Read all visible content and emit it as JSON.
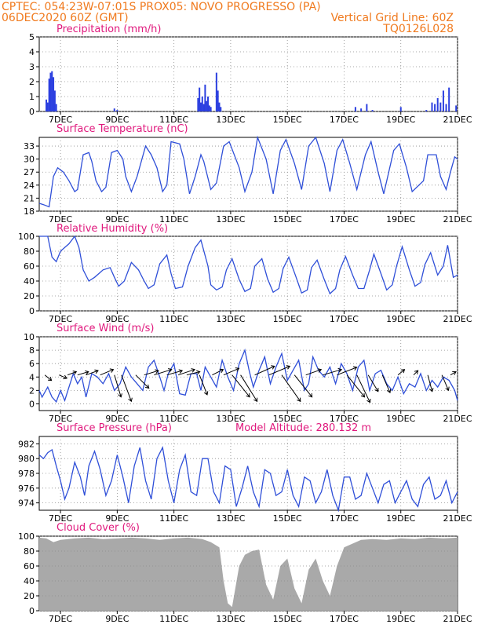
{
  "header": {
    "line1_left": "CPTEC:   054:23W-07:01S   PROX05: NOVO PROGRESSO (PA)",
    "line2_left": "06DEC2020 60Z (GMT)",
    "line2_right": "Vertical Grid Line: 60Z",
    "line3_right": "TQ0126L028"
  },
  "x_ticks": [
    "7DEC",
    "9DEC",
    "11DEC",
    "13DEC",
    "15DEC",
    "17DEC",
    "19DEC",
    "21DEC"
  ],
  "x_tick_days": [
    7,
    9,
    11,
    13,
    15,
    17,
    19,
    21
  ],
  "x_range_days": [
    6.25,
    21.0
  ],
  "colors": {
    "header": "#f07a1e",
    "titles": "#e0197d",
    "series": "#2f4fd8",
    "bars": "#2b3fe0",
    "cloud": "#a9a9a9"
  },
  "chart_data": [
    {
      "type": "bar",
      "title": "Precipitation (mm/h)",
      "yticks": [
        0,
        1,
        2,
        3,
        4,
        5
      ],
      "ylim": [
        0,
        5
      ],
      "grid": true,
      "x": [
        6.5,
        6.55,
        6.6,
        6.65,
        6.7,
        6.75,
        6.8,
        6.85,
        8.9,
        9.0,
        11.85,
        11.9,
        11.95,
        12.0,
        12.05,
        12.1,
        12.15,
        12.2,
        12.25,
        12.3,
        12.5,
        12.55,
        12.6,
        12.65,
        17.4,
        17.6,
        17.8,
        18.0,
        19.0,
        19.9,
        20.1,
        20.2,
        20.3,
        20.4,
        20.5,
        20.6,
        20.7,
        20.95
      ],
      "values": [
        0.8,
        0.6,
        2.2,
        2.6,
        2.7,
        2.3,
        1.4,
        0.5,
        0.2,
        0.1,
        0.9,
        1.6,
        0.6,
        1.0,
        0.5,
        1.8,
        0.7,
        1.0,
        0.4,
        0.3,
        2.6,
        1.4,
        0.6,
        0.3,
        0.3,
        0.2,
        0.5,
        0.1,
        0.3,
        0.1,
        0.6,
        0.5,
        0.9,
        0.6,
        1.4,
        0.5,
        1.6,
        0.4
      ]
    },
    {
      "type": "line",
      "title": "Surface Temperature (nC)",
      "yticks": [
        18,
        21,
        24,
        27,
        30,
        33
      ],
      "ylim": [
        18,
        35
      ],
      "grid": true,
      "x": [
        6.25,
        6.4,
        6.6,
        6.75,
        6.9,
        7.1,
        7.3,
        7.5,
        7.6,
        7.8,
        8.0,
        8.1,
        8.25,
        8.45,
        8.6,
        8.8,
        9.0,
        9.2,
        9.3,
        9.5,
        9.7,
        10.0,
        10.2,
        10.4,
        10.6,
        10.75,
        10.9,
        11.2,
        11.35,
        11.55,
        11.75,
        11.95,
        12.05,
        12.3,
        12.5,
        12.75,
        12.95,
        13.3,
        13.5,
        13.75,
        13.95,
        14.25,
        14.5,
        14.75,
        14.95,
        15.25,
        15.5,
        15.75,
        16.0,
        16.3,
        16.5,
        16.75,
        16.95,
        17.2,
        17.45,
        17.75,
        17.95,
        18.2,
        18.4,
        18.75,
        18.95,
        19.2,
        19.4,
        19.8,
        19.95,
        20.25,
        20.4,
        20.6,
        20.75,
        20.9,
        21.0
      ],
      "values": [
        19.8,
        19.5,
        19.0,
        26.0,
        28.0,
        27.0,
        25.0,
        22.5,
        23.0,
        31.0,
        31.5,
        29.5,
        25.0,
        22.5,
        23.5,
        31.5,
        32.0,
        30.0,
        26.0,
        22.5,
        26.0,
        33.0,
        31.0,
        28.0,
        22.5,
        24.0,
        34.0,
        33.5,
        30.0,
        22.0,
        26.0,
        31.0,
        29.5,
        23.0,
        24.5,
        33.0,
        34.0,
        28.0,
        22.5,
        27.0,
        35.0,
        30.0,
        22.0,
        32.0,
        34.5,
        29.0,
        23.0,
        33.0,
        35.0,
        29.0,
        22.5,
        32.0,
        34.5,
        29.0,
        23.0,
        31.0,
        34.0,
        27.0,
        22.0,
        32.0,
        33.5,
        28.0,
        22.5,
        25.0,
        31.0,
        31.0,
        26.0,
        23.0,
        27.0,
        30.5,
        30.0
      ]
    },
    {
      "type": "line",
      "title": "Relative Humidity (%)",
      "yticks": [
        0,
        20,
        40,
        60,
        80,
        100
      ],
      "ylim": [
        0,
        100
      ],
      "grid": true,
      "x": [
        6.25,
        6.4,
        6.55,
        6.7,
        6.85,
        7.0,
        7.15,
        7.3,
        7.5,
        7.65,
        7.8,
        8.0,
        8.2,
        8.5,
        8.75,
        8.9,
        9.05,
        9.25,
        9.5,
        9.75,
        9.95,
        10.1,
        10.3,
        10.5,
        10.75,
        10.9,
        11.05,
        11.3,
        11.5,
        11.75,
        11.95,
        12.2,
        12.3,
        12.5,
        12.7,
        12.85,
        13.05,
        13.3,
        13.5,
        13.7,
        13.85,
        14.1,
        14.3,
        14.5,
        14.7,
        14.85,
        15.05,
        15.3,
        15.5,
        15.7,
        15.85,
        16.05,
        16.3,
        16.5,
        16.7,
        16.85,
        17.05,
        17.3,
        17.5,
        17.7,
        17.9,
        18.05,
        18.3,
        18.5,
        18.7,
        18.85,
        19.05,
        19.3,
        19.5,
        19.7,
        19.85,
        20.05,
        20.3,
        20.5,
        20.65,
        20.85,
        21.0
      ],
      "values": [
        100,
        100,
        100,
        72,
        66,
        80,
        85,
        90,
        100,
        85,
        55,
        40,
        45,
        55,
        58,
        45,
        33,
        40,
        65,
        55,
        40,
        30,
        35,
        63,
        75,
        50,
        30,
        32,
        60,
        85,
        95,
        60,
        35,
        28,
        32,
        55,
        70,
        42,
        26,
        30,
        60,
        70,
        43,
        25,
        30,
        57,
        72,
        46,
        24,
        28,
        58,
        68,
        42,
        23,
        30,
        55,
        73,
        48,
        30,
        30,
        55,
        76,
        50,
        28,
        35,
        60,
        86,
        55,
        33,
        38,
        62,
        78,
        48,
        60,
        88,
        45,
        48
      ]
    },
    {
      "type": "line",
      "title": "Surface Wind (m/s)",
      "yticks": [
        0,
        2,
        4,
        6,
        8,
        10
      ],
      "ylim": [
        -1,
        10
      ],
      "grid": true,
      "x": [
        6.25,
        6.35,
        6.55,
        6.7,
        6.85,
        7.0,
        7.15,
        7.3,
        7.45,
        7.6,
        7.75,
        7.9,
        8.1,
        8.3,
        8.5,
        8.7,
        8.9,
        9.1,
        9.3,
        9.5,
        9.7,
        9.9,
        10.1,
        10.3,
        10.5,
        10.65,
        10.8,
        11.0,
        11.2,
        11.4,
        11.6,
        11.8,
        11.95,
        12.1,
        12.3,
        12.5,
        12.7,
        12.9,
        13.1,
        13.3,
        13.5,
        13.65,
        13.8,
        14.0,
        14.2,
        14.4,
        14.6,
        14.8,
        15.0,
        15.2,
        15.4,
        15.6,
        15.75,
        15.9,
        16.1,
        16.3,
        16.5,
        16.7,
        16.9,
        17.1,
        17.3,
        17.5,
        17.7,
        17.9,
        18.1,
        18.3,
        18.5,
        18.7,
        18.9,
        19.1,
        19.3,
        19.5,
        19.7,
        19.9,
        20.1,
        20.3,
        20.5,
        20.7,
        20.9,
        21.0
      ],
      "values": [
        2.0,
        1.0,
        2.5,
        1.0,
        0.3,
        2.0,
        0.5,
        2.5,
        4.5,
        3.0,
        4.0,
        1.0,
        4.5,
        4.0,
        3.0,
        4.5,
        2.0,
        3.0,
        5.5,
        4.0,
        3.0,
        2.0,
        5.5,
        6.5,
        4.0,
        2.0,
        4.5,
        6.0,
        1.5,
        1.3,
        4.5,
        4.5,
        2.0,
        5.5,
        4.0,
        2.5,
        6.5,
        4.0,
        2.0,
        6.0,
        8.0,
        5.0,
        2.5,
        5.0,
        7.0,
        3.0,
        5.5,
        7.5,
        3.5,
        5.0,
        6.5,
        2.0,
        3.0,
        7.0,
        5.0,
        4.0,
        5.5,
        3.0,
        6.0,
        4.5,
        2.0,
        5.5,
        6.5,
        2.0,
        4.5,
        5.0,
        3.0,
        2.0,
        4.0,
        1.5,
        3.0,
        2.5,
        4.5,
        2.0,
        3.5,
        2.5,
        4.0,
        3.5,
        2.0,
        0.5
      ]
    },
    {
      "type": "line",
      "title": "Surface Pressure (hPa)",
      "annotation": "Model Altitude: 280.132 m",
      "yticks": [
        974,
        976,
        978,
        980,
        982
      ],
      "ylim": [
        973,
        983
      ],
      "grid": true,
      "x": [
        6.25,
        6.4,
        6.55,
        6.7,
        6.85,
        7.0,
        7.15,
        7.3,
        7.5,
        7.7,
        7.85,
        8.0,
        8.2,
        8.4,
        8.6,
        8.8,
        9.0,
        9.2,
        9.4,
        9.6,
        9.8,
        10.0,
        10.2,
        10.4,
        10.6,
        10.8,
        11.0,
        11.2,
        11.4,
        11.6,
        11.8,
        12.0,
        12.2,
        12.4,
        12.6,
        12.8,
        13.0,
        13.2,
        13.4,
        13.6,
        13.8,
        14.0,
        14.2,
        14.4,
        14.6,
        14.8,
        15.0,
        15.2,
        15.4,
        15.6,
        15.8,
        16.0,
        16.2,
        16.4,
        16.6,
        16.8,
        17.0,
        17.2,
        17.4,
        17.6,
        17.8,
        18.0,
        18.2,
        18.4,
        18.6,
        18.8,
        19.0,
        19.2,
        19.4,
        19.6,
        19.8,
        20.0,
        20.2,
        20.4,
        20.6,
        20.8,
        21.0
      ],
      "values": [
        980.5,
        980.0,
        980.8,
        981.2,
        979.0,
        977.0,
        974.5,
        976.0,
        979.5,
        977.5,
        975.0,
        979.0,
        981.0,
        978.5,
        975.0,
        977.0,
        980.5,
        977.5,
        974.0,
        979.0,
        981.5,
        977.0,
        974.5,
        980.0,
        981.5,
        977.0,
        974.0,
        978.5,
        980.5,
        975.5,
        975.0,
        980.0,
        980.0,
        975.5,
        974.0,
        979.0,
        978.5,
        973.5,
        976.0,
        979.0,
        975.5,
        973.5,
        978.5,
        978.0,
        975.0,
        975.5,
        978.5,
        975.0,
        973.5,
        977.5,
        977.0,
        974.0,
        975.5,
        978.5,
        975.0,
        973.0,
        977.5,
        977.5,
        974.5,
        975.0,
        978.0,
        976.0,
        974.0,
        976.5,
        977.0,
        974.0,
        975.5,
        977.0,
        974.5,
        973.5,
        976.5,
        977.5,
        974.5,
        975.0,
        977.0,
        974.0,
        975.5
      ]
    },
    {
      "type": "area",
      "title": "Cloud Cover (%)",
      "yticks": [
        0,
        20,
        40,
        60,
        80,
        100
      ],
      "ylim": [
        0,
        100
      ],
      "grid": false,
      "x": [
        6.25,
        6.5,
        6.75,
        7.0,
        7.5,
        8.0,
        8.5,
        9.0,
        9.5,
        10.0,
        10.5,
        11.0,
        11.5,
        12.0,
        12.3,
        12.6,
        12.75,
        12.9,
        13.05,
        13.3,
        13.5,
        13.75,
        14.0,
        14.25,
        14.5,
        14.75,
        15.0,
        15.25,
        15.5,
        15.75,
        16.0,
        16.25,
        16.5,
        16.75,
        17.0,
        17.3,
        17.6,
        18.0,
        18.5,
        19.0,
        19.5,
        20.0,
        20.5,
        21.0
      ],
      "values": [
        98,
        97,
        92,
        95,
        97,
        98,
        96,
        97,
        98,
        97,
        95,
        97,
        98,
        96,
        92,
        85,
        40,
        10,
        5,
        60,
        75,
        80,
        82,
        35,
        15,
        60,
        70,
        30,
        10,
        55,
        70,
        40,
        20,
        60,
        85,
        90,
        95,
        96,
        95,
        97,
        96,
        98,
        97,
        98
      ]
    }
  ],
  "wind_vectors": {
    "x": [
      6.45,
      6.95,
      7.25,
      7.6,
      7.9,
      8.4,
      8.9,
      9.15,
      9.65,
      9.95,
      10.3,
      10.75,
      11.15,
      11.45,
      11.9,
      12.35,
      12.75,
      13.05,
      13.35,
      13.85,
      14.35,
      14.8,
      15.25,
      15.65,
      16.25,
      16.75,
      17.1,
      17.45,
      17.85,
      18.35,
      18.9,
      19.45,
      19.95,
      20.45,
      20.75
    ],
    "u": [
      0.6,
      0.7,
      0.8,
      1.0,
      1.1,
      1.2,
      0.6,
      0.9,
      1.2,
      1.3,
      1.6,
      1.4,
      1.5,
      1.2,
      0.7,
      1.0,
      1.4,
      1.6,
      1.5,
      1.8,
      1.9,
      1.7,
      1.6,
      1.4,
      1.7,
      1.8,
      1.6,
      1.2,
      0.9,
      0.7,
      0.6,
      0.4,
      0.4,
      0.6,
      0.5
    ],
    "v": [
      -0.5,
      -0.3,
      0.3,
      0.3,
      0.4,
      0.5,
      -2.0,
      -2.4,
      -1.2,
      0.4,
      0.5,
      0.4,
      0.5,
      0.3,
      -1.8,
      0.5,
      0.6,
      -2.0,
      -2.4,
      0.8,
      0.8,
      -2.4,
      -2.0,
      0.5,
      0.5,
      0.7,
      -2.0,
      -2.5,
      -1.5,
      -1.6,
      0.5,
      0.4,
      -1.5,
      -1.4,
      0.3
    ]
  }
}
